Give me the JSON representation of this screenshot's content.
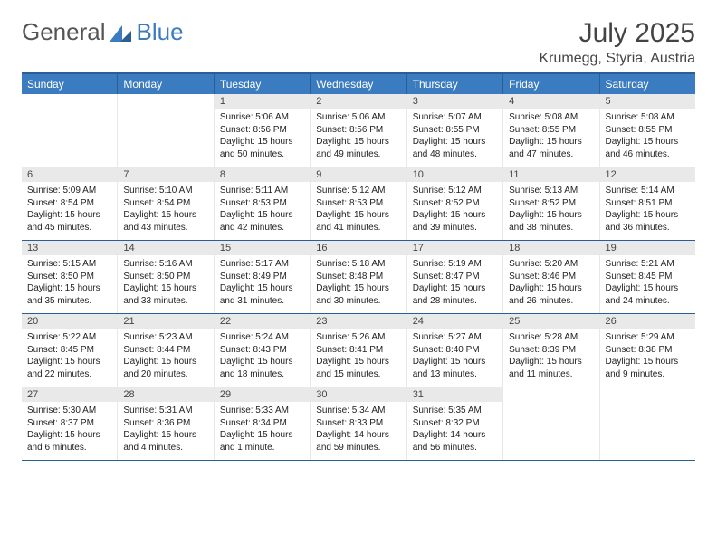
{
  "brand": {
    "part1": "General",
    "part2": "Blue"
  },
  "title": "July 2025",
  "location": "Krumegg, Styria, Austria",
  "colors": {
    "header_bg": "#3b7bbf",
    "header_border": "#2a5e95",
    "daynum_bg": "#e9e9e9",
    "text": "#222222",
    "bg": "#ffffff"
  },
  "dayHeaders": [
    "Sunday",
    "Monday",
    "Tuesday",
    "Wednesday",
    "Thursday",
    "Friday",
    "Saturday"
  ],
  "weeks": [
    [
      {
        "n": "",
        "sr": "",
        "ss": "",
        "dl": ""
      },
      {
        "n": "",
        "sr": "",
        "ss": "",
        "dl": ""
      },
      {
        "n": "1",
        "sr": "Sunrise: 5:06 AM",
        "ss": "Sunset: 8:56 PM",
        "dl": "Daylight: 15 hours and 50 minutes."
      },
      {
        "n": "2",
        "sr": "Sunrise: 5:06 AM",
        "ss": "Sunset: 8:56 PM",
        "dl": "Daylight: 15 hours and 49 minutes."
      },
      {
        "n": "3",
        "sr": "Sunrise: 5:07 AM",
        "ss": "Sunset: 8:55 PM",
        "dl": "Daylight: 15 hours and 48 minutes."
      },
      {
        "n": "4",
        "sr": "Sunrise: 5:08 AM",
        "ss": "Sunset: 8:55 PM",
        "dl": "Daylight: 15 hours and 47 minutes."
      },
      {
        "n": "5",
        "sr": "Sunrise: 5:08 AM",
        "ss": "Sunset: 8:55 PM",
        "dl": "Daylight: 15 hours and 46 minutes."
      }
    ],
    [
      {
        "n": "6",
        "sr": "Sunrise: 5:09 AM",
        "ss": "Sunset: 8:54 PM",
        "dl": "Daylight: 15 hours and 45 minutes."
      },
      {
        "n": "7",
        "sr": "Sunrise: 5:10 AM",
        "ss": "Sunset: 8:54 PM",
        "dl": "Daylight: 15 hours and 43 minutes."
      },
      {
        "n": "8",
        "sr": "Sunrise: 5:11 AM",
        "ss": "Sunset: 8:53 PM",
        "dl": "Daylight: 15 hours and 42 minutes."
      },
      {
        "n": "9",
        "sr": "Sunrise: 5:12 AM",
        "ss": "Sunset: 8:53 PM",
        "dl": "Daylight: 15 hours and 41 minutes."
      },
      {
        "n": "10",
        "sr": "Sunrise: 5:12 AM",
        "ss": "Sunset: 8:52 PM",
        "dl": "Daylight: 15 hours and 39 minutes."
      },
      {
        "n": "11",
        "sr": "Sunrise: 5:13 AM",
        "ss": "Sunset: 8:52 PM",
        "dl": "Daylight: 15 hours and 38 minutes."
      },
      {
        "n": "12",
        "sr": "Sunrise: 5:14 AM",
        "ss": "Sunset: 8:51 PM",
        "dl": "Daylight: 15 hours and 36 minutes."
      }
    ],
    [
      {
        "n": "13",
        "sr": "Sunrise: 5:15 AM",
        "ss": "Sunset: 8:50 PM",
        "dl": "Daylight: 15 hours and 35 minutes."
      },
      {
        "n": "14",
        "sr": "Sunrise: 5:16 AM",
        "ss": "Sunset: 8:50 PM",
        "dl": "Daylight: 15 hours and 33 minutes."
      },
      {
        "n": "15",
        "sr": "Sunrise: 5:17 AM",
        "ss": "Sunset: 8:49 PM",
        "dl": "Daylight: 15 hours and 31 minutes."
      },
      {
        "n": "16",
        "sr": "Sunrise: 5:18 AM",
        "ss": "Sunset: 8:48 PM",
        "dl": "Daylight: 15 hours and 30 minutes."
      },
      {
        "n": "17",
        "sr": "Sunrise: 5:19 AM",
        "ss": "Sunset: 8:47 PM",
        "dl": "Daylight: 15 hours and 28 minutes."
      },
      {
        "n": "18",
        "sr": "Sunrise: 5:20 AM",
        "ss": "Sunset: 8:46 PM",
        "dl": "Daylight: 15 hours and 26 minutes."
      },
      {
        "n": "19",
        "sr": "Sunrise: 5:21 AM",
        "ss": "Sunset: 8:45 PM",
        "dl": "Daylight: 15 hours and 24 minutes."
      }
    ],
    [
      {
        "n": "20",
        "sr": "Sunrise: 5:22 AM",
        "ss": "Sunset: 8:45 PM",
        "dl": "Daylight: 15 hours and 22 minutes."
      },
      {
        "n": "21",
        "sr": "Sunrise: 5:23 AM",
        "ss": "Sunset: 8:44 PM",
        "dl": "Daylight: 15 hours and 20 minutes."
      },
      {
        "n": "22",
        "sr": "Sunrise: 5:24 AM",
        "ss": "Sunset: 8:43 PM",
        "dl": "Daylight: 15 hours and 18 minutes."
      },
      {
        "n": "23",
        "sr": "Sunrise: 5:26 AM",
        "ss": "Sunset: 8:41 PM",
        "dl": "Daylight: 15 hours and 15 minutes."
      },
      {
        "n": "24",
        "sr": "Sunrise: 5:27 AM",
        "ss": "Sunset: 8:40 PM",
        "dl": "Daylight: 15 hours and 13 minutes."
      },
      {
        "n": "25",
        "sr": "Sunrise: 5:28 AM",
        "ss": "Sunset: 8:39 PM",
        "dl": "Daylight: 15 hours and 11 minutes."
      },
      {
        "n": "26",
        "sr": "Sunrise: 5:29 AM",
        "ss": "Sunset: 8:38 PM",
        "dl": "Daylight: 15 hours and 9 minutes."
      }
    ],
    [
      {
        "n": "27",
        "sr": "Sunrise: 5:30 AM",
        "ss": "Sunset: 8:37 PM",
        "dl": "Daylight: 15 hours and 6 minutes."
      },
      {
        "n": "28",
        "sr": "Sunrise: 5:31 AM",
        "ss": "Sunset: 8:36 PM",
        "dl": "Daylight: 15 hours and 4 minutes."
      },
      {
        "n": "29",
        "sr": "Sunrise: 5:33 AM",
        "ss": "Sunset: 8:34 PM",
        "dl": "Daylight: 15 hours and 1 minute."
      },
      {
        "n": "30",
        "sr": "Sunrise: 5:34 AM",
        "ss": "Sunset: 8:33 PM",
        "dl": "Daylight: 14 hours and 59 minutes."
      },
      {
        "n": "31",
        "sr": "Sunrise: 5:35 AM",
        "ss": "Sunset: 8:32 PM",
        "dl": "Daylight: 14 hours and 56 minutes."
      },
      {
        "n": "",
        "sr": "",
        "ss": "",
        "dl": ""
      },
      {
        "n": "",
        "sr": "",
        "ss": "",
        "dl": ""
      }
    ]
  ]
}
